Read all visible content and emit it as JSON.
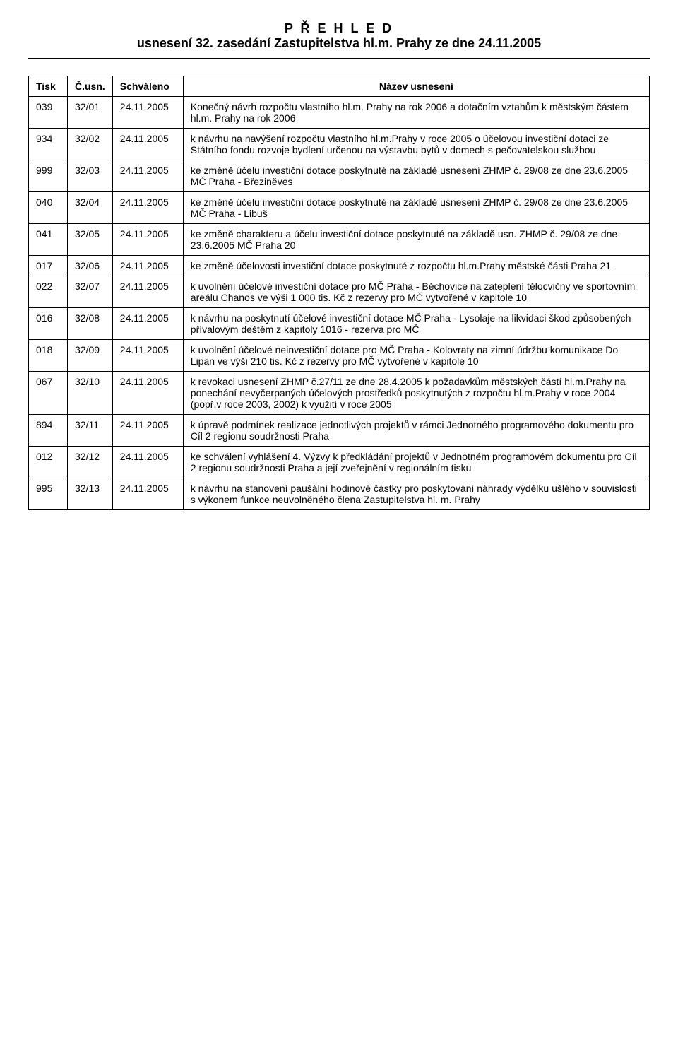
{
  "header": {
    "line1": "P Ř E H L E D",
    "line2": "usnesení 32. zasedání Zastupitelstva hl.m. Prahy ze dne 24.11.2005"
  },
  "table": {
    "columns": [
      "Tisk",
      "Č.usn.",
      "Schváleno",
      "Název usnesení"
    ],
    "rows": [
      {
        "tisk": "039",
        "cusn": "32/01",
        "date": "24.11.2005",
        "name": "Konečný návrh rozpočtu vlastního hl.m. Prahy na rok 2006 a dotačním vztahům k městským částem hl.m. Prahy na rok 2006"
      },
      {
        "tisk": "934",
        "cusn": "32/02",
        "date": "24.11.2005",
        "name": "k návrhu na navýšení rozpočtu vlastního hl.m.Prahy v roce 2005 o účelovou investiční dotaci ze Státního fondu rozvoje bydlení určenou na výstavbu bytů v domech s pečovatelskou službou"
      },
      {
        "tisk": "999",
        "cusn": "32/03",
        "date": "24.11.2005",
        "name": "ke změně účelu investiční dotace poskytnuté na základě usnesení ZHMP č. 29/08 ze dne 23.6.2005 MČ Praha - Březiněves"
      },
      {
        "tisk": "040",
        "cusn": "32/04",
        "date": "24.11.2005",
        "name": "ke změně účelu investiční dotace poskytnuté na základě usnesení ZHMP č. 29/08 ze dne 23.6.2005 MČ Praha - Libuš"
      },
      {
        "tisk": "041",
        "cusn": "32/05",
        "date": "24.11.2005",
        "name": "ke změně charakteru a účelu investiční dotace poskytnuté na základě usn. ZHMP č. 29/08 ze dne 23.6.2005 MČ Praha 20"
      },
      {
        "tisk": "017",
        "cusn": "32/06",
        "date": "24.11.2005",
        "name": "ke změně účelovosti investiční dotace poskytnuté z rozpočtu hl.m.Prahy městské části Praha 21"
      },
      {
        "tisk": "022",
        "cusn": "32/07",
        "date": "24.11.2005",
        "name": "k uvolnění účelové investiční dotace pro MČ Praha - Běchovice na zateplení tělocvičny ve sportovním areálu Chanos ve výši 1 000 tis. Kč z rezervy pro MČ vytvořené v kapitole 10"
      },
      {
        "tisk": "016",
        "cusn": "32/08",
        "date": "24.11.2005",
        "name": "k návrhu na poskytnutí účelové investiční dotace MČ Praha - Lysolaje na likvidaci škod způsobených přívalovým deštěm z kapitoly 1016 - rezerva pro MČ"
      },
      {
        "tisk": "018",
        "cusn": "32/09",
        "date": "24.11.2005",
        "name": "k uvolnění účelové neinvestiční dotace pro MČ Praha - Kolovraty na zimní údržbu komunikace Do Lipan ve výši 210 tis. Kč z rezervy pro MČ vytvořené v kapitole 10"
      },
      {
        "tisk": "067",
        "cusn": "32/10",
        "date": "24.11.2005",
        "name": "k revokaci usnesení ZHMP č.27/11 ze dne 28.4.2005 k požadavkům městských částí hl.m.Prahy na ponechání nevyčerpaných účelových prostředků poskytnutých z rozpočtu hl.m.Prahy v roce 2004 (popř.v roce 2003, 2002) k využití v roce 2005"
      },
      {
        "tisk": "894",
        "cusn": "32/11",
        "date": "24.11.2005",
        "name": "k úpravě podmínek realizace jednotlivých projektů v rámci Jednotného programového dokumentu pro Cíl 2 regionu soudržnosti Praha"
      },
      {
        "tisk": "012",
        "cusn": "32/12",
        "date": "24.11.2005",
        "name": "ke schválení vyhlášení 4. Výzvy k předkládání projektů v Jednotném programovém dokumentu pro Cíl 2 regionu soudržnosti Praha a její zveřejnění v regionálním tisku"
      },
      {
        "tisk": "995",
        "cusn": "32/13",
        "date": "24.11.2005",
        "name": "k návrhu na stanovení paušální hodinové částky pro poskytování náhrady výdělku ušlého v souvislosti s výkonem funkce neuvolněného člena Zastupitelstva hl. m. Prahy"
      }
    ]
  }
}
